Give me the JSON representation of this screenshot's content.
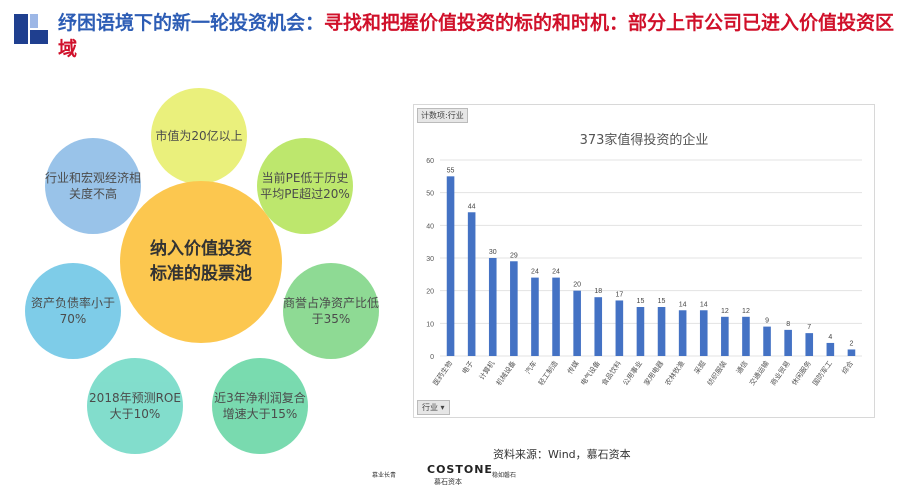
{
  "header": {
    "title_part1": "纾困语境下的新一轮投资机会：",
    "title_part2": "寻找和把握价值投资的标的和时机：部分上市公司已进入价值投资区域"
  },
  "diagram": {
    "center": "纳入价值投资标准的股票池",
    "criteria": [
      "市值为20亿以上",
      "当前PE低于历史平均PE超过20%",
      "商誉占净资产比低于35%",
      "近3年净利润复合增速大于15%",
      "2018年预测ROE大于10%",
      "资产负债率小于70%",
      "行业和宏观经济相关度不高"
    ]
  },
  "chart_tag": "计数项:行业",
  "filter_label": "行业 ▾",
  "source": "资料来源：Wind，慕石资本",
  "footer": {
    "left": "慕业长青",
    "brand": "COSTONE",
    "brand_cn": "慕石资本",
    "right": "稳如磐石"
  },
  "chart_data": {
    "type": "bar",
    "title": "373家值得投资的企业",
    "categories": [
      "医药生物",
      "电子",
      "计算机",
      "机械设备",
      "汽车",
      "轻工制造",
      "传媒",
      "电气设备",
      "食品饮料",
      "公用事业",
      "家用电器",
      "农林牧渔",
      "采掘",
      "纺织服装",
      "通信",
      "交通运输",
      "商业贸易",
      "休闲服务",
      "国防军工",
      "综合"
    ],
    "values": [
      55,
      44,
      30,
      29,
      24,
      24,
      20,
      18,
      17,
      15,
      15,
      14,
      14,
      12,
      12,
      9,
      8,
      7,
      4,
      2
    ],
    "ylim": [
      0,
      60
    ],
    "yticks": [
      0,
      10,
      20,
      30,
      40,
      50,
      60
    ],
    "bar_color": "#4472c4",
    "grid": true
  }
}
